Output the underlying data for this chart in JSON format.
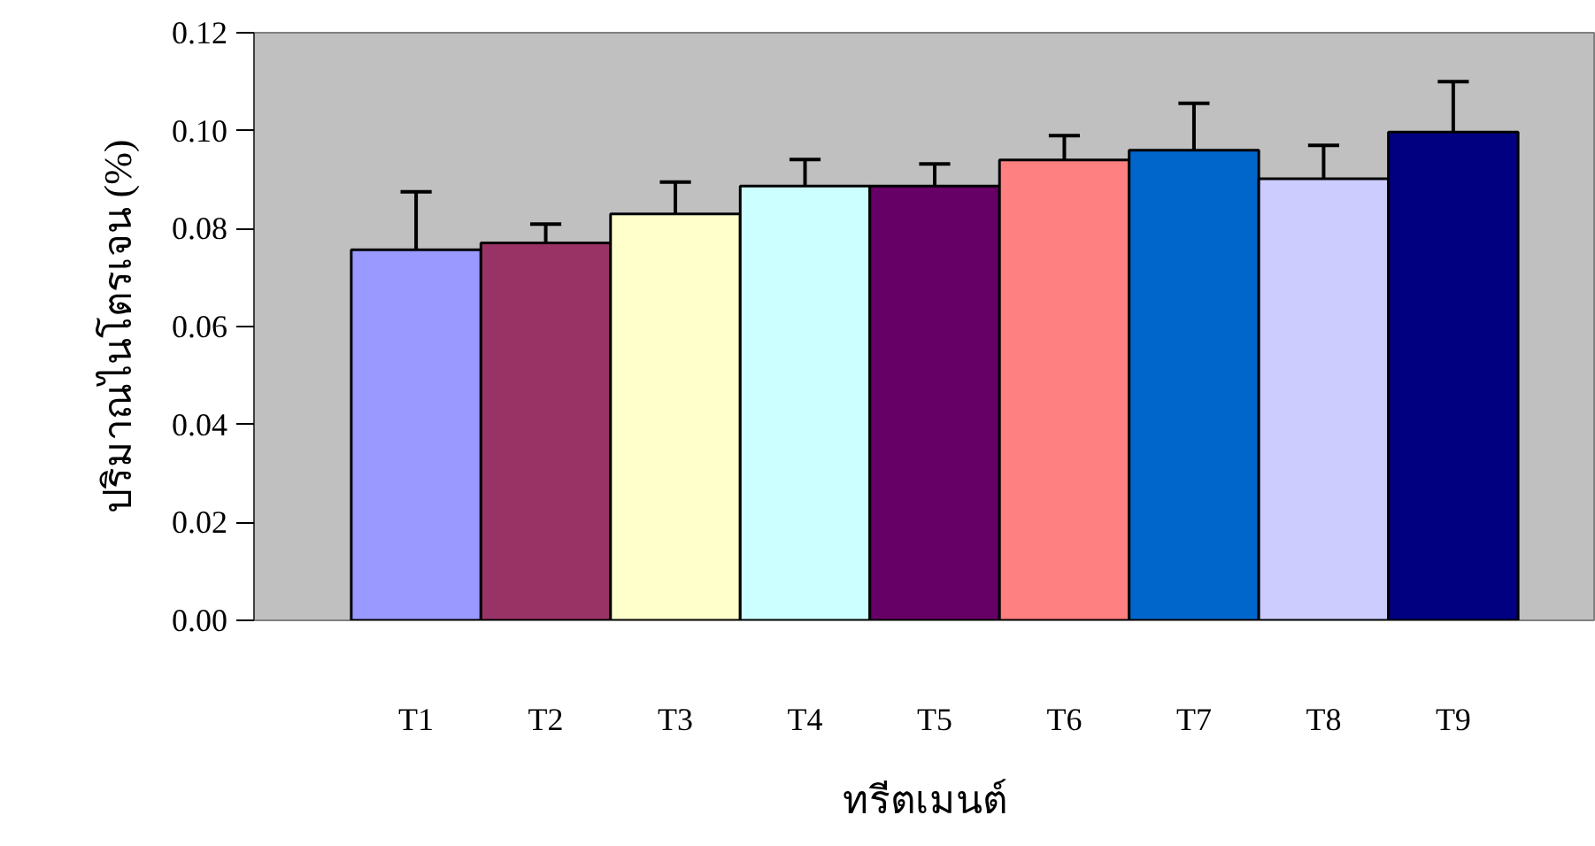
{
  "chart_data": {
    "type": "bar",
    "xlabel": "ทรีตเมนต์",
    "ylabel": "ปริมาณไนโตรเจน (%)",
    "categories": [
      "T1",
      "T2",
      "T3",
      "T4",
      "T5",
      "T6",
      "T7",
      "T8",
      "T9"
    ],
    "values": [
      0.0757,
      0.0771,
      0.083,
      0.0887,
      0.0887,
      0.094,
      0.096,
      0.0902,
      0.0997
    ],
    "errors": [
      [
        0.0757,
        0.0875
      ],
      [
        0.0771,
        0.0809
      ],
      [
        0.083,
        0.0895
      ],
      [
        0.0887,
        0.0941
      ],
      [
        0.0887,
        0.0932
      ],
      [
        0.094,
        0.099
      ],
      [
        0.096,
        0.1056
      ],
      [
        0.0902,
        0.097
      ],
      [
        0.0997,
        0.11
      ]
    ],
    "colors": [
      "#9999ff",
      "#993366",
      "#ffffcc",
      "#ccffff",
      "#660066",
      "#ff8080",
      "#0066cc",
      "#ccccff",
      "#000080"
    ],
    "ylim": [
      0,
      0.12
    ],
    "yticks": [
      {
        "value": 0,
        "label": "0.00"
      },
      {
        "value": 0.02,
        "label": "0.02"
      },
      {
        "value": 0.04,
        "label": "0.04"
      },
      {
        "value": 0.06,
        "label": "0.06"
      },
      {
        "value": 0.08,
        "label": "0.08"
      },
      {
        "value": 0.1,
        "label": "0.10"
      },
      {
        "value": 0.12,
        "label": "0.12"
      }
    ],
    "grid": false
  }
}
